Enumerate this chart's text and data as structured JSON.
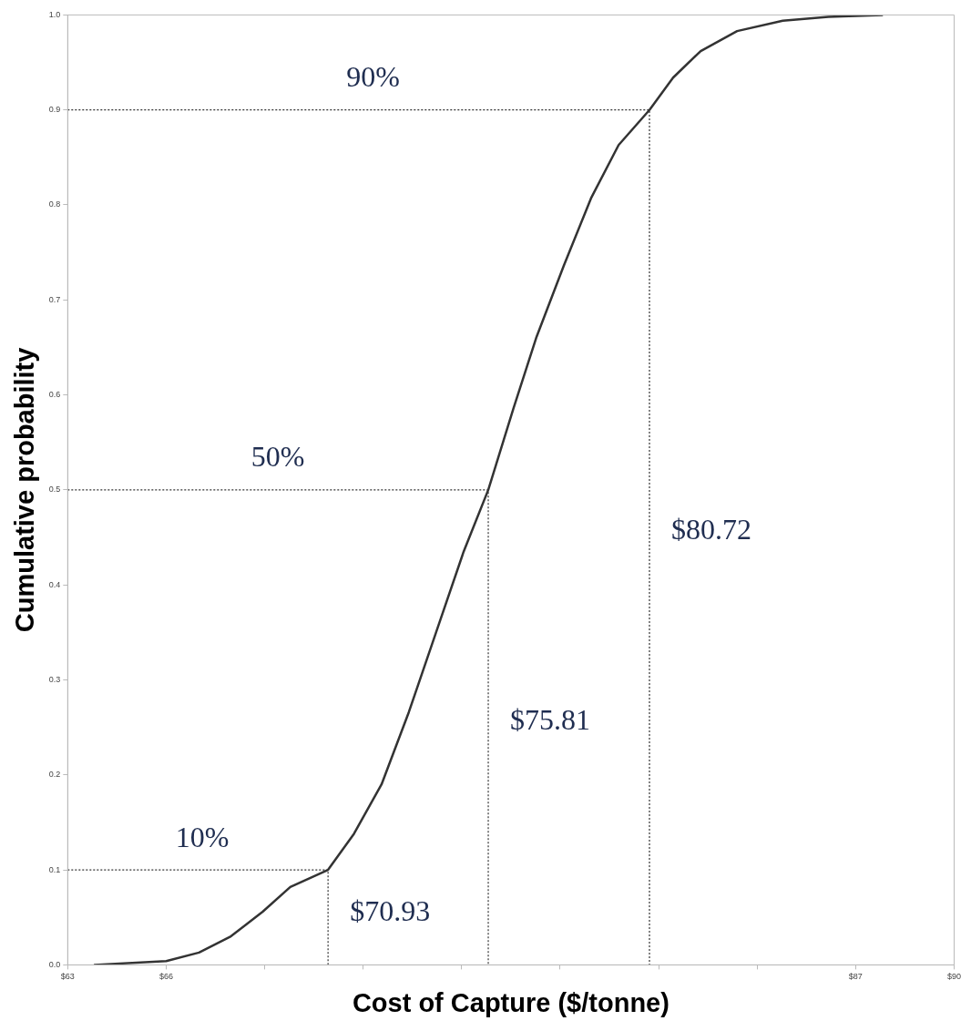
{
  "chart_data": {
    "type": "line",
    "xlabel": "Cost of Capture ($/tonne)",
    "ylabel": "Cumulative probability",
    "xlim": [
      63,
      90
    ],
    "ylim": [
      0,
      1
    ],
    "xticks": [
      {
        "value": 63,
        "label": "$63"
      },
      {
        "value": 66,
        "label": "$66"
      },
      {
        "value": 69,
        "label": null
      },
      {
        "value": 72,
        "label": null
      },
      {
        "value": 75,
        "label": null
      },
      {
        "value": 78,
        "label": null
      },
      {
        "value": 81,
        "label": null
      },
      {
        "value": 84,
        "label": null
      },
      {
        "value": 87,
        "label": "$87"
      },
      {
        "value": 90,
        "label": "$90"
      }
    ],
    "yticks": [
      {
        "value": 0,
        "label": "0.0"
      },
      0.1,
      0.2,
      0.3,
      0.4,
      0.5,
      0.6,
      0.7,
      0.8,
      0.9,
      {
        "value": 1,
        "label": "1.0"
      }
    ],
    "grid": false,
    "legend": false,
    "marker": "none",
    "series": [
      {
        "color": "#333333",
        "line_style": "solid",
        "x": [
          63.8,
          66,
          67,
          67.97,
          68.94,
          69.78,
          70.93,
          71.72,
          72.56,
          73.39,
          74.22,
          75.06,
          75.81,
          76.58,
          77.28,
          78.11,
          78.94,
          79.78,
          80.72,
          81.44,
          82.28,
          83.39,
          84.78,
          86.17,
          87.83
        ],
        "values": [
          0,
          0.004,
          0.013,
          0.03,
          0.056,
          0.082,
          0.1,
          0.138,
          0.19,
          0.266,
          0.35,
          0.435,
          0.5,
          0.586,
          0.661,
          0.736,
          0.807,
          0.863,
          0.9,
          0.934,
          0.962,
          0.983,
          0.994,
          0.998,
          1
        ]
      },
      {
        "color": "#333333",
        "line_style": "dotted",
        "x": [
          63,
          70.93,
          70.93
        ],
        "values": [
          0.1,
          0.1,
          0
        ]
      },
      {
        "color": "#333333",
        "line_style": "dotted",
        "x": [
          63,
          75.81,
          75.81
        ],
        "values": [
          0.5,
          0.5,
          0
        ]
      },
      {
        "color": "#333333",
        "line_style": "dotted",
        "x": [
          63,
          80.72,
          80.72
        ],
        "values": [
          0.9,
          0.9,
          0
        ]
      }
    ],
    "annotations": [
      {
        "text": "90%",
        "x": 72.3,
        "y": 0.9
      },
      {
        "text": "50%",
        "x": 69.4,
        "y": 0.5
      },
      {
        "text": "10%",
        "x": 67.1,
        "y": 0.1
      },
      {
        "text": "$70.93",
        "x": 70.93,
        "y": 0.054
      },
      {
        "text": "$75.81",
        "x": 75.81,
        "y": 0.256
      },
      {
        "text": "$80.72",
        "x": 80.72,
        "y": 0.456
      }
    ]
  }
}
